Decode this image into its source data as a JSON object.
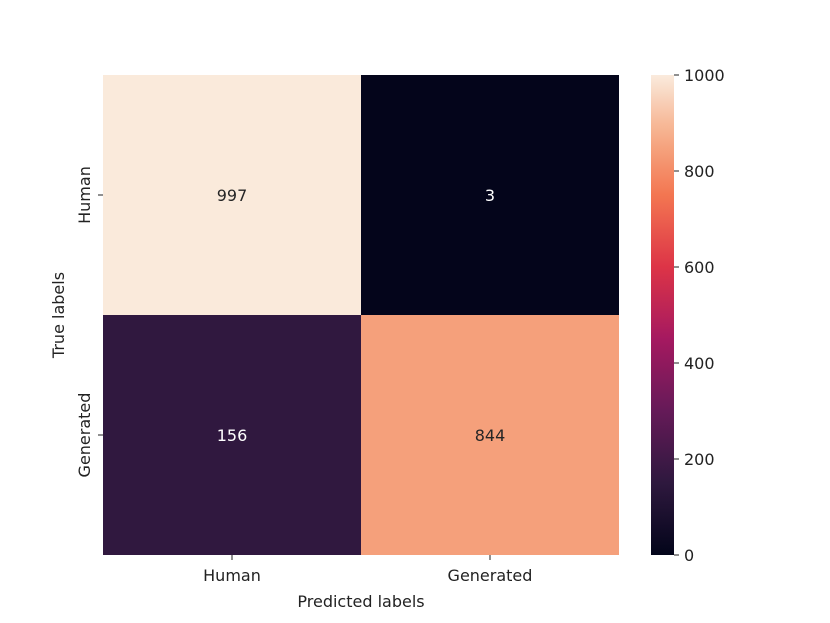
{
  "chart_data": {
    "type": "heatmap",
    "title": "",
    "xlabel": "Predicted labels",
    "ylabel": "True labels",
    "x_categories": [
      "Human",
      "Generated"
    ],
    "y_categories": [
      "Human",
      "Generated"
    ],
    "values": [
      [
        997,
        3
      ],
      [
        156,
        844
      ]
    ],
    "cell_text": [
      [
        "997",
        "3"
      ],
      [
        "156",
        "844"
      ]
    ],
    "colorbar": {
      "min": 0,
      "max": 1000,
      "ticks": [
        0,
        200,
        400,
        600,
        800,
        1000
      ],
      "tick_labels": [
        "0",
        "200",
        "400",
        "600",
        "800",
        "1000"
      ],
      "colormap": "rocket"
    },
    "grid": false,
    "legend": "colorbar-right"
  }
}
